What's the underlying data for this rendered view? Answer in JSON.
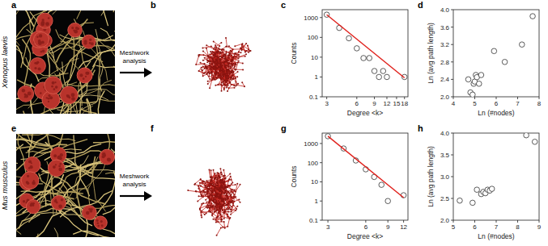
{
  "rows": [
    {
      "species": "Xenopus laevis",
      "arrow_label": "Meshwork analysis",
      "panel_letters": [
        "a",
        "b",
        "c",
        "d"
      ]
    },
    {
      "species": "Mus musculus",
      "arrow_label": "Meshwork analysis",
      "panel_letters": [
        "e",
        "f",
        "g",
        "h"
      ]
    }
  ],
  "chart_data": [
    {
      "type": "scatter",
      "x_label": "Degree <k>",
      "y_label": "Counts",
      "log": true,
      "xlim": [
        2.7,
        19.5
      ],
      "ylim": [
        0.1,
        2500
      ],
      "xticks": [
        3,
        6,
        9,
        12,
        15,
        18
      ],
      "yticks": [
        0.1,
        1,
        10,
        100,
        1000
      ],
      "series": [
        {
          "type": "scatter",
          "marker": "open-circle",
          "color": "#333333",
          "x": [
            3,
            4,
            5,
            6,
            7,
            8,
            9,
            10,
            11,
            12,
            18
          ],
          "values": [
            1400,
            300,
            90,
            28,
            9,
            9,
            2,
            1,
            2,
            1,
            1
          ]
        },
        {
          "type": "line",
          "line_style": "solid",
          "color": "#e0201b",
          "x": [
            3,
            18
          ],
          "values": [
            1400,
            0.9
          ]
        }
      ]
    },
    {
      "type": "scatter",
      "x_label": "Ln (#nodes)",
      "y_label": "Ln (avg path length)",
      "xlim": [
        4,
        8
      ],
      "ylim": [
        2,
        4
      ],
      "xticks": [
        4,
        5,
        6,
        7,
        8
      ],
      "yticks": [
        {
          "value": 2,
          "label": "2.0"
        },
        2.4,
        2.8,
        3.2,
        3.6,
        {
          "value": 4,
          "label": "4.0"
        }
      ],
      "series": [
        {
          "type": "scatter",
          "marker": "open-circle",
          "color": "#333333",
          "x": [
            4.7,
            4.8,
            4.9,
            4.95,
            5.0,
            5.05,
            5.1,
            5.2,
            5.3,
            5.9,
            6.4,
            7.2,
            7.7
          ],
          "values": [
            2.4,
            2.1,
            2.05,
            2.3,
            2.35,
            2.5,
            2.45,
            2.3,
            2.5,
            3.05,
            2.8,
            3.2,
            3.85
          ]
        }
      ]
    },
    {
      "type": "scatter",
      "x_label": "Degree <k>",
      "y_label": "Counts",
      "log": true,
      "xlim": [
        2.7,
        13
      ],
      "ylim": [
        0.1,
        3500
      ],
      "xticks": [
        3,
        6,
        9,
        12
      ],
      "yticks": [
        0.1,
        1,
        10,
        100,
        1000
      ],
      "series": [
        {
          "type": "scatter",
          "marker": "open-circle",
          "color": "#333333",
          "x": [
            3,
            4,
            5,
            6,
            7,
            8,
            9,
            12
          ],
          "values": [
            2400,
            550,
            130,
            45,
            18,
            7,
            1,
            2
          ]
        },
        {
          "type": "line",
          "line_style": "solid",
          "color": "#e0201b",
          "x": [
            3,
            12
          ],
          "values": [
            2400,
            1.5
          ]
        }
      ]
    },
    {
      "type": "scatter",
      "x_label": "Ln (#nodes)",
      "y_label": "Ln (avg path length)",
      "xlim": [
        5,
        9
      ],
      "ylim": [
        2,
        4
      ],
      "xticks": [
        5,
        6,
        7,
        8,
        9
      ],
      "yticks": [
        {
          "value": 2,
          "label": "2.0"
        },
        2.5,
        {
          "value": 3,
          "label": "3.0"
        },
        3.5,
        {
          "value": 4,
          "label": "4.0"
        }
      ],
      "series": [
        {
          "type": "scatter",
          "marker": "open-circle",
          "color": "#333333",
          "x": [
            5.3,
            5.9,
            6.1,
            6.3,
            6.4,
            6.5,
            6.6,
            6.7,
            6.8,
            8.4,
            8.8
          ],
          "values": [
            2.45,
            2.4,
            2.7,
            2.6,
            2.65,
            2.62,
            2.7,
            2.68,
            2.72,
            3.95,
            3.8
          ]
        }
      ]
    }
  ]
}
